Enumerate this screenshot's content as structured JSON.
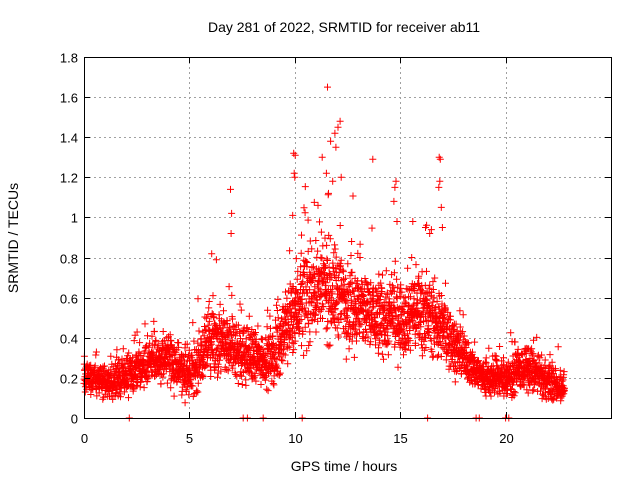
{
  "chart_data": {
    "type": "scatter",
    "title": "Day 281 of 2022, SRMTID for receiver ab11",
    "xlabel": "GPS time / hours",
    "ylabel": "SRMTID / TECUs",
    "xlim": [
      0,
      25
    ],
    "ylim": [
      0,
      1.8
    ],
    "xticks": [
      0,
      5,
      10,
      15,
      20
    ],
    "xtick_labels": [
      "0",
      "5",
      "10",
      "15",
      "20"
    ],
    "yticks": [
      0,
      0.2,
      0.4,
      0.6,
      0.8,
      1,
      1.2,
      1.4,
      1.6,
      1.8
    ],
    "ytick_labels": [
      "0",
      "0.2",
      "0.4",
      "0.6",
      "0.8",
      "1",
      "1.2",
      "1.4",
      "1.6",
      "1.8"
    ],
    "grid": true,
    "marker": "+",
    "color": "#ff0000",
    "series": [
      {
        "name": "SRMTID",
        "profile_note": "approximate envelope of the scatter, sampled hourly",
        "envelope": [
          {
            "x": 0,
            "center": 0.2,
            "spread": 0.07
          },
          {
            "x": 1,
            "center": 0.18,
            "spread": 0.07
          },
          {
            "x": 2,
            "center": 0.2,
            "spread": 0.08
          },
          {
            "x": 3,
            "center": 0.27,
            "spread": 0.1
          },
          {
            "x": 4,
            "center": 0.3,
            "spread": 0.12
          },
          {
            "x": 5,
            "center": 0.2,
            "spread": 0.1
          },
          {
            "x": 6,
            "center": 0.38,
            "spread": 0.15
          },
          {
            "x": 7,
            "center": 0.35,
            "spread": 0.15
          },
          {
            "x": 8,
            "center": 0.3,
            "spread": 0.12
          },
          {
            "x": 9,
            "center": 0.3,
            "spread": 0.12
          },
          {
            "x": 10,
            "center": 0.55,
            "spread": 0.2
          },
          {
            "x": 11,
            "center": 0.65,
            "spread": 0.22
          },
          {
            "x": 12,
            "center": 0.62,
            "spread": 0.22
          },
          {
            "x": 13,
            "center": 0.55,
            "spread": 0.2
          },
          {
            "x": 14,
            "center": 0.5,
            "spread": 0.18
          },
          {
            "x": 15,
            "center": 0.5,
            "spread": 0.17
          },
          {
            "x": 16,
            "center": 0.55,
            "spread": 0.18
          },
          {
            "x": 17,
            "center": 0.45,
            "spread": 0.15
          },
          {
            "x": 18,
            "center": 0.3,
            "spread": 0.1
          },
          {
            "x": 19,
            "center": 0.2,
            "spread": 0.08
          },
          {
            "x": 20,
            "center": 0.2,
            "spread": 0.09
          },
          {
            "x": 21,
            "center": 0.25,
            "spread": 0.1
          },
          {
            "x": 22,
            "center": 0.18,
            "spread": 0.08
          },
          {
            "x": 22.8,
            "center": 0.15,
            "spread": 0.06
          }
        ],
        "points_per_hour": 140,
        "outliers": [
          {
            "x": 6.95,
            "y": 1.14
          },
          {
            "x": 7.0,
            "y": 1.02
          },
          {
            "x": 6.98,
            "y": 0.92
          },
          {
            "x": 9.95,
            "y": 1.32
          },
          {
            "x": 10.02,
            "y": 1.31
          },
          {
            "x": 9.97,
            "y": 1.22
          },
          {
            "x": 10.0,
            "y": 1.2
          },
          {
            "x": 9.9,
            "y": 1.01
          },
          {
            "x": 11.55,
            "y": 1.65
          },
          {
            "x": 11.9,
            "y": 1.42
          },
          {
            "x": 12.05,
            "y": 1.45
          },
          {
            "x": 12.15,
            "y": 1.48
          },
          {
            "x": 11.7,
            "y": 1.38
          },
          {
            "x": 11.95,
            "y": 1.35
          },
          {
            "x": 11.3,
            "y": 1.3
          },
          {
            "x": 11.5,
            "y": 1.22
          },
          {
            "x": 11.8,
            "y": 1.18
          },
          {
            "x": 12.2,
            "y": 1.2
          },
          {
            "x": 11.1,
            "y": 1.06
          },
          {
            "x": 11.6,
            "y": 1.12
          },
          {
            "x": 13.7,
            "y": 1.29
          },
          {
            "x": 14.8,
            "y": 1.18
          },
          {
            "x": 14.75,
            "y": 1.15
          },
          {
            "x": 14.7,
            "y": 1.08
          },
          {
            "x": 14.85,
            "y": 0.98
          },
          {
            "x": 16.85,
            "y": 1.3
          },
          {
            "x": 16.9,
            "y": 1.29
          },
          {
            "x": 16.88,
            "y": 1.18
          },
          {
            "x": 16.83,
            "y": 1.15
          },
          {
            "x": 16.95,
            "y": 1.05
          },
          {
            "x": 17.0,
            "y": 0.95
          },
          {
            "x": 16.4,
            "y": 0.92
          },
          {
            "x": 16.2,
            "y": 0.95
          },
          {
            "x": 15.6,
            "y": 0.98
          }
        ],
        "zero_points": [
          2.15,
          7.55,
          7.75,
          8.5,
          10.35,
          16.3,
          18.6,
          18.75,
          20.0,
          20.15
        ]
      }
    ]
  }
}
